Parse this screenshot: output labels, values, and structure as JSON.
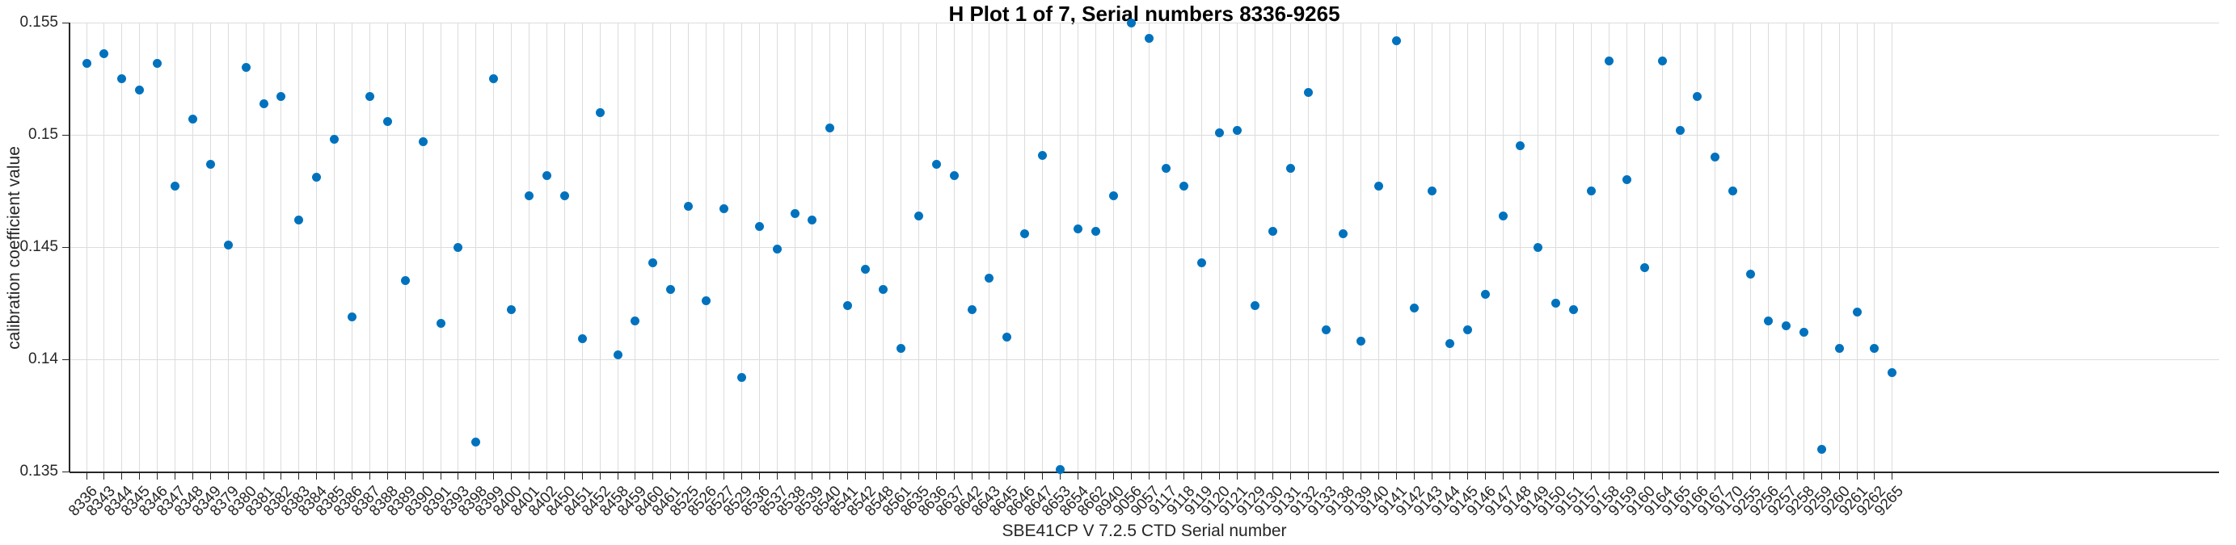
{
  "chart_data": {
    "type": "scatter",
    "title": "H Plot 1 of 7, Serial numbers 8336-9265",
    "xlabel": "SBE41CP V 7.2.5 CTD Serial number",
    "ylabel": "calibration coefficient value",
    "ylim": [
      0.135,
      0.155
    ],
    "yticks": [
      0.135,
      0.14,
      0.145,
      0.15,
      0.155
    ],
    "ytick_labels": [
      "0.135",
      "0.14",
      "0.145",
      "0.15",
      "0.155"
    ],
    "grid": true,
    "legend": "none",
    "marker_color": "#0072BD",
    "grid_color": "#dcdcdc",
    "axis_color": "#262626",
    "categories": [
      "8336",
      "8343",
      "8344",
      "8345",
      "8346",
      "8347",
      "8348",
      "8349",
      "8379",
      "8380",
      "8381",
      "8382",
      "8383",
      "8384",
      "8385",
      "8386",
      "8387",
      "8388",
      "8389",
      "8390",
      "8391",
      "8393",
      "8398",
      "8399",
      "8400",
      "8401",
      "8402",
      "8450",
      "8451",
      "8452",
      "8458",
      "8459",
      "8460",
      "8461",
      "8525",
      "8526",
      "8527",
      "8529",
      "8536",
      "8537",
      "8538",
      "8539",
      "8540",
      "8541",
      "8542",
      "8548",
      "8561",
      "8635",
      "8636",
      "8637",
      "8642",
      "8643",
      "8645",
      "8646",
      "8647",
      "8653",
      "8654",
      "8662",
      "8940",
      "9056",
      "9057",
      "9117",
      "9118",
      "9119",
      "9120",
      "9121",
      "9129",
      "9130",
      "9131",
      "9132",
      "9133",
      "9138",
      "9139",
      "9140",
      "9141",
      "9142",
      "9143",
      "9144",
      "9145",
      "9146",
      "9147",
      "9148",
      "9149",
      "9150",
      "9151",
      "9157",
      "9158",
      "9159",
      "9160",
      "9164",
      "9165",
      "9166",
      "9167",
      "9170",
      "9255",
      "9256",
      "9257",
      "9258",
      "9259",
      "9260",
      "9261",
      "9262",
      "9265"
    ],
    "values": [
      0.1532,
      0.1536,
      0.1525,
      0.152,
      0.1532,
      0.1477,
      0.1507,
      0.1487,
      0.1451,
      0.153,
      0.1514,
      0.1517,
      0.1462,
      0.1481,
      0.1498,
      0.1419,
      0.1517,
      0.1506,
      0.1435,
      0.1497,
      0.1416,
      0.145,
      0.1363,
      0.1525,
      0.1422,
      0.1473,
      0.1482,
      0.1473,
      0.1409,
      0.151,
      0.1402,
      0.1417,
      0.1443,
      0.1431,
      0.1468,
      0.1426,
      0.1467,
      0.1392,
      0.1459,
      0.1449,
      0.1465,
      0.1462,
      0.1503,
      0.1424,
      0.144,
      0.1431,
      0.1405,
      0.1464,
      0.1487,
      0.1482,
      0.1422,
      0.1436,
      0.141,
      0.1456,
      0.1491,
      0.1351,
      0.1458,
      0.1457,
      0.1473,
      0.155,
      0.1543,
      0.1485,
      0.1477,
      0.1443,
      0.1501,
      0.1502,
      0.1424,
      0.1457,
      0.1485,
      0.1519,
      0.1413,
      0.1456,
      0.1408,
      0.1477,
      0.1542,
      0.1423,
      0.1475,
      0.1407,
      0.1413,
      0.1429,
      0.1464,
      0.1495,
      0.145,
      0.1425,
      0.1422,
      0.1475,
      0.1533,
      0.148,
      0.1441,
      0.1533,
      0.1502,
      0.1517,
      0.149,
      0.1475,
      0.1438,
      0.1417,
      0.1415,
      0.1412,
      0.136,
      0.1405,
      0.1421,
      0.1405,
      0.1394
    ]
  }
}
